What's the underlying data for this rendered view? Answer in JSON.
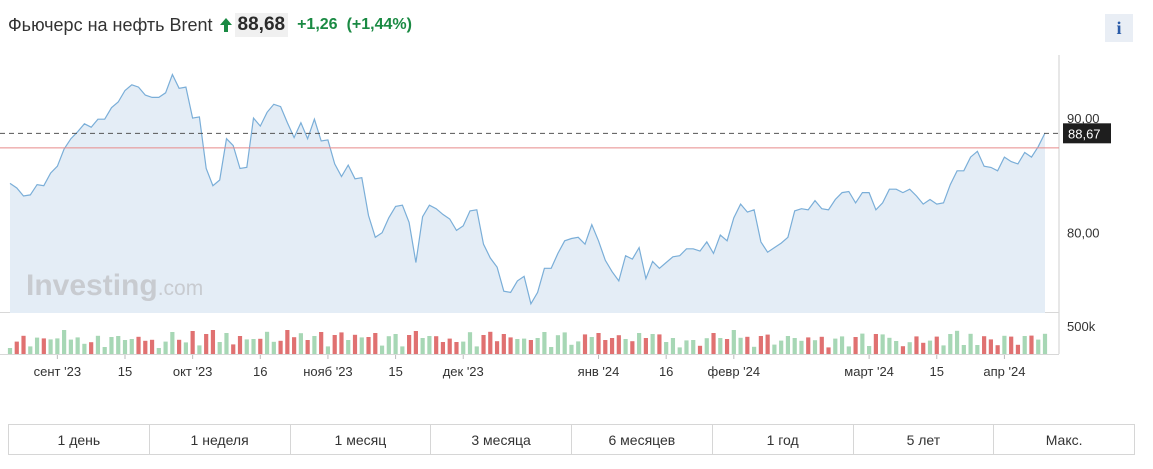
{
  "header": {
    "title": "Фьючерс на нефть Brent",
    "price": "88,68",
    "change": "+1,26",
    "change_pct": "(+1,44%)",
    "direction": "up",
    "info_label": "i"
  },
  "watermark": {
    "brand": "Investing",
    "suffix": ".com"
  },
  "colors": {
    "line": "#7aaed8",
    "area": "#e4edf6",
    "volume_up": "#a7d7b5",
    "volume_down": "#e07171",
    "reference_line": "#e88a8a",
    "up_text": "#1a8a43"
  },
  "tabs": [
    "1 день",
    "1 неделя",
    "1 месяц",
    "3 месяца",
    "6 месяцев",
    "1 год",
    "5 лет",
    "Макс."
  ],
  "chart_data": {
    "type": "area",
    "title": "Фьючерс на нефть Brent",
    "ylim": [
      73.0,
      95.5
    ],
    "y_ticks": [
      {
        "value": 80,
        "label": "80,00"
      },
      {
        "value": 90,
        "label": "90,00"
      }
    ],
    "last_value": 88.67,
    "last_value_label": "88,67",
    "reference_value": 87.4,
    "grid": false,
    "x_ticks": [
      {
        "label": "сент '23",
        "index": 7
      },
      {
        "label": "15",
        "index": 17
      },
      {
        "label": "окт '23",
        "index": 27
      },
      {
        "label": "16",
        "index": 37
      },
      {
        "label": "нояб '23",
        "index": 47
      },
      {
        "label": "15",
        "index": 57
      },
      {
        "label": "дек '23",
        "index": 67
      },
      {
        "label": "янв '24",
        "index": 87
      },
      {
        "label": "16",
        "index": 97
      },
      {
        "label": "февр '24",
        "index": 107
      },
      {
        "label": "март '24",
        "index": 127
      },
      {
        "label": "15",
        "index": 137
      },
      {
        "label": "апр '24",
        "index": 147
      }
    ],
    "values": [
      84.3,
      83.9,
      83.2,
      83.3,
      84.2,
      84.1,
      85.2,
      85.8,
      87.3,
      88.2,
      88.8,
      89.5,
      89.2,
      89.9,
      89.9,
      90.9,
      91.4,
      92.4,
      92.9,
      92.7,
      92.0,
      91.8,
      91.8,
      92.2,
      93.8,
      92.6,
      92.7,
      90.0,
      90.1,
      85.6,
      84.1,
      84.6,
      88.2,
      87.6,
      85.6,
      85.7,
      90.0,
      89.3,
      90.5,
      91.2,
      91.0,
      89.6,
      88.3,
      89.6,
      88.2,
      89.9,
      88.0,
      88.1,
      86.0,
      84.9,
      85.9,
      84.7,
      84.8,
      81.5,
      79.6,
      80.0,
      81.3,
      82.3,
      82.4,
      80.9,
      77.4,
      81.4,
      82.4,
      82.1,
      81.6,
      81.2,
      80.2,
      80.6,
      81.9,
      82.0,
      79.0,
      77.8,
      77.0,
      74.9,
      74.8,
      75.8,
      76.2,
      73.8,
      74.8,
      76.9,
      76.9,
      78.2,
      79.3,
      79.5,
      79.6,
      79.0,
      80.7,
      79.3,
      77.6,
      76.6,
      75.8,
      78.0,
      77.7,
      78.7,
      76.0,
      77.5,
      76.9,
      77.4,
      77.9,
      78.0,
      78.6,
      78.6,
      78.4,
      79.2,
      78.2,
      79.8,
      79.3,
      81.3,
      82.5,
      81.8,
      82.0,
      79.2,
      78.3,
      78.7,
      79.1,
      79.6,
      81.9,
      82.1,
      82.0,
      82.8,
      82.1,
      82.0,
      82.9,
      83.5,
      83.6,
      82.6,
      83.5,
      83.5,
      82.0,
      82.6,
      83.8,
      83.8,
      83.5,
      83.8,
      83.2,
      82.5,
      82.9,
      82.5,
      82.6,
      84.2,
      85.4,
      85.4,
      86.6,
      87.1,
      85.8,
      85.7,
      85.4,
      86.6,
      86.2,
      86.0,
      87.0,
      86.6,
      87.5,
      88.7
    ]
  }
}
